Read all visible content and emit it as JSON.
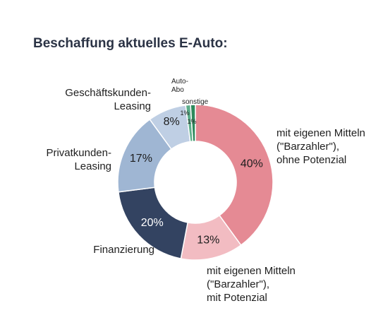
{
  "chart_data": {
    "type": "pie",
    "title": "Beschaffung aktuelles E-Auto:",
    "donut": true,
    "legend": "none",
    "slices": [
      {
        "label_lines": [
          "mit eigenen Mitteln",
          "(\"Barzahler\"),",
          "ohne Potenzial"
        ],
        "value": 40,
        "value_label": "40%",
        "color": "#e58a94"
      },
      {
        "label_lines": [
          "mit eigenen Mitteln",
          "(\"Barzahler\"),",
          "mit Potenzial"
        ],
        "value": 13,
        "value_label": "13%",
        "color": "#f2bcc2"
      },
      {
        "label_lines": [
          "Finanzierung"
        ],
        "value": 20,
        "value_label": "20%",
        "color": "#334361"
      },
      {
        "label_lines": [
          "Privatkunden-",
          "Leasing"
        ],
        "value": 17,
        "value_label": "17%",
        "color": "#9fb6d3"
      },
      {
        "label_lines": [
          "Geschäftskunden-",
          "Leasing"
        ],
        "value": 8,
        "value_label": "8%",
        "color": "#bfcfe4"
      },
      {
        "label_lines": [
          "Auto-",
          "Abo"
        ],
        "value": 1,
        "value_label": "1%",
        "color": "#5cae8a"
      },
      {
        "label_lines": [
          "sonstige"
        ],
        "value": 1,
        "value_label": "1%",
        "color": "#2e8a5c"
      }
    ]
  }
}
